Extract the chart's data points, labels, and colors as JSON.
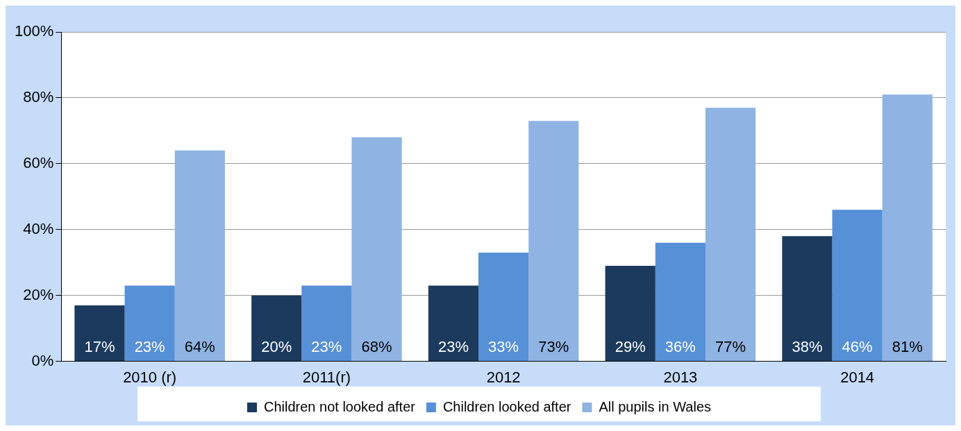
{
  "chart_data": {
    "type": "bar",
    "categories": [
      "2010 (r)",
      "2011(r)",
      "2012",
      "2013",
      "2014"
    ],
    "series": [
      {
        "name": "Children not looked after",
        "color": "#1b3a5e",
        "values": [
          17,
          20,
          23,
          29,
          38
        ],
        "value_labels": [
          "17%",
          "20%",
          "23%",
          "29%",
          "38%"
        ]
      },
      {
        "name": "Children looked after",
        "color": "#5690d6",
        "values": [
          23,
          23,
          33,
          36,
          46
        ],
        "value_labels": [
          "23%",
          "23%",
          "33%",
          "36%",
          "46%"
        ]
      },
      {
        "name": "All pupils in Wales",
        "color": "#8fb3e3",
        "values": [
          64,
          68,
          73,
          77,
          81
        ],
        "value_labels": [
          "64%",
          "68%",
          "73%",
          "77%",
          "81%"
        ]
      }
    ],
    "ylim": [
      0,
      100
    ],
    "yticks": [
      {
        "value": 0,
        "label": "0%"
      },
      {
        "value": 20,
        "label": "20%"
      },
      {
        "value": 40,
        "label": "40%"
      },
      {
        "value": 60,
        "label": "60%"
      },
      {
        "value": 80,
        "label": "80%"
      },
      {
        "value": 100,
        "label": "100%"
      }
    ],
    "grid": "y",
    "legend": "bottom"
  }
}
